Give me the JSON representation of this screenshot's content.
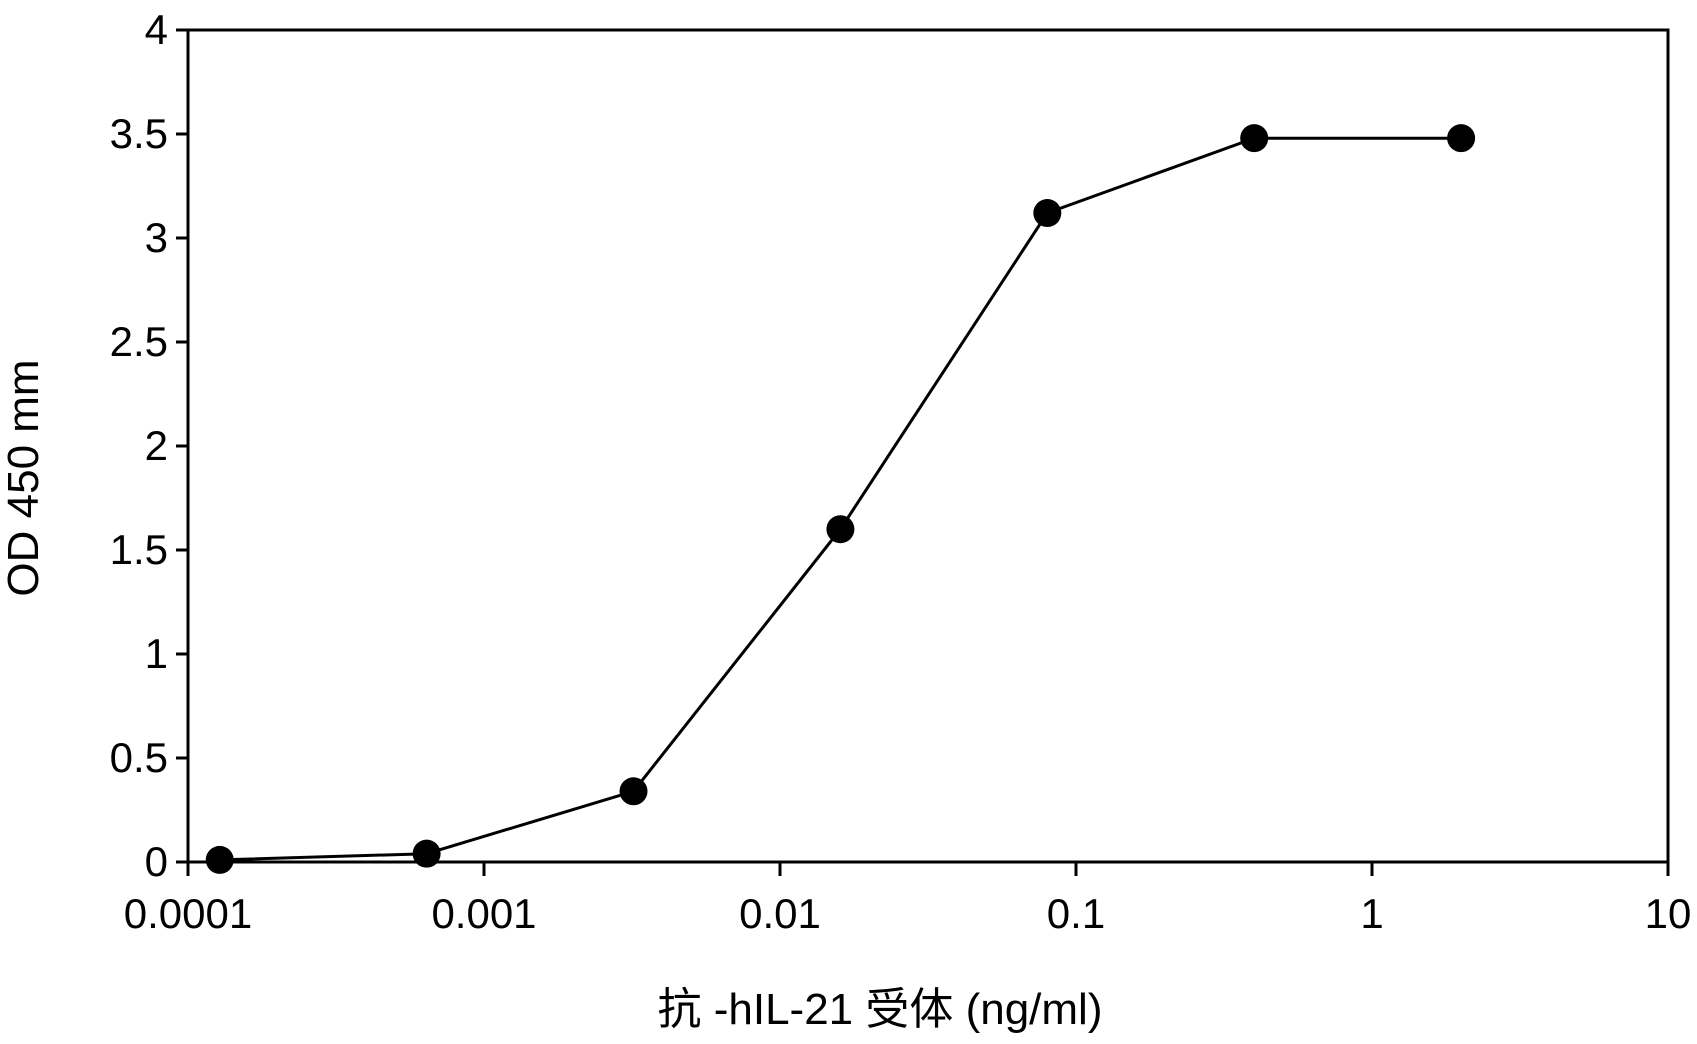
{
  "chart_data": {
    "type": "line",
    "title": "",
    "xlabel": "抗 -hIL-21 受体 (ng/ml)",
    "ylabel": "OD 450 mm",
    "xscale": "log",
    "xlim": [
      0.0001,
      10
    ],
    "ylim": [
      0,
      4
    ],
    "xticks": [
      {
        "value": 0.0001,
        "label": "0.0001"
      },
      {
        "value": 0.001,
        "label": "0.001"
      },
      {
        "value": 0.01,
        "label": "0.01"
      },
      {
        "value": 0.1,
        "label": "0.1"
      },
      {
        "value": 1,
        "label": "1"
      },
      {
        "value": 10,
        "label": "10"
      }
    ],
    "yticks": [
      {
        "value": 0,
        "label": "0"
      },
      {
        "value": 0.5,
        "label": "0.5"
      },
      {
        "value": 1,
        "label": "1"
      },
      {
        "value": 1.5,
        "label": "1.5"
      },
      {
        "value": 2,
        "label": "2"
      },
      {
        "value": 2.5,
        "label": "2.5"
      },
      {
        "value": 3,
        "label": "3"
      },
      {
        "value": 3.5,
        "label": "3.5"
      },
      {
        "value": 4,
        "label": "4"
      }
    ],
    "grid": false,
    "legend": "none",
    "series": [
      {
        "color": "#000000",
        "x": [
          0.000128,
          0.00064,
          0.0032,
          0.016,
          0.08,
          0.4,
          2
        ],
        "y": [
          0.01,
          0.04,
          0.34,
          1.6,
          3.12,
          3.48,
          3.48
        ]
      }
    ]
  }
}
